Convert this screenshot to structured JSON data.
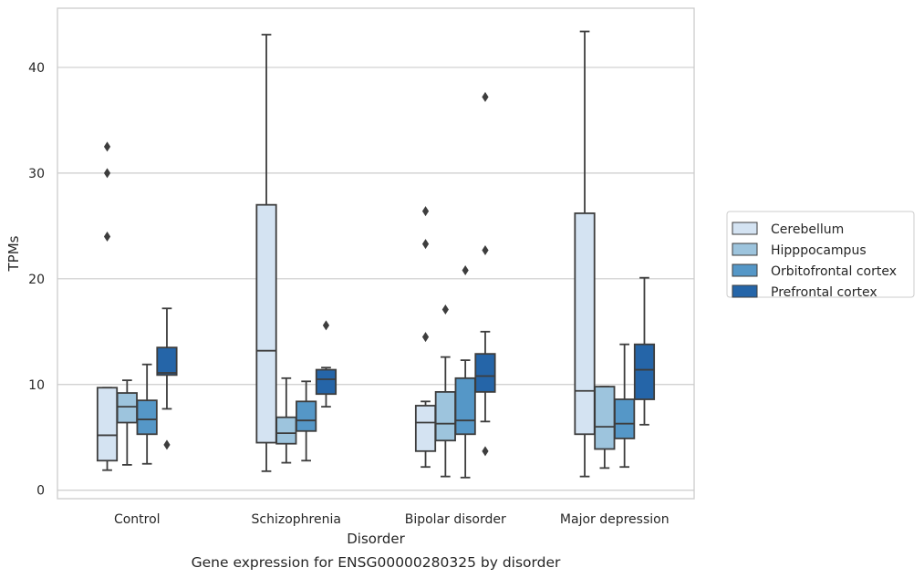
{
  "chart_data": {
    "type": "box",
    "title": "",
    "caption": "Gene expression for ENSG00000280325 by disorder",
    "xlabel": "Disorder",
    "ylabel": "TPMs",
    "ylim": [
      -0.8,
      45.6
    ],
    "yticks": [
      0,
      10,
      20,
      30,
      40
    ],
    "grid": "horizontal",
    "legend_position": "right",
    "categories": [
      "Control",
      "Schizophrenia",
      "Bipolar disorder",
      "Major depression"
    ],
    "series": [
      {
        "name": "Cerebellum",
        "color": "#d4e3f2",
        "boxes": [
          {
            "whisker_low": 1.9,
            "q1": 2.8,
            "median": 5.2,
            "q3": 9.7,
            "whisker_high": 9.7,
            "outliers": [
              24.0,
              30.0,
              32.5
            ]
          },
          {
            "whisker_low": 1.8,
            "q1": 4.5,
            "median": 13.2,
            "q3": 27.0,
            "whisker_high": 43.1,
            "outliers": []
          },
          {
            "whisker_low": 2.2,
            "q1": 3.7,
            "median": 6.4,
            "q3": 8.0,
            "whisker_high": 8.4,
            "outliers": [
              14.5,
              23.3,
              26.4
            ]
          },
          {
            "whisker_low": 1.3,
            "q1": 5.3,
            "median": 9.4,
            "q3": 26.2,
            "whisker_high": 43.4,
            "outliers": []
          }
        ]
      },
      {
        "name": "Hipppocampus",
        "color": "#9dc4dd",
        "boxes": [
          {
            "whisker_low": 2.4,
            "q1": 6.4,
            "median": 7.9,
            "q3": 9.2,
            "whisker_high": 10.4,
            "outliers": []
          },
          {
            "whisker_low": 2.6,
            "q1": 4.4,
            "median": 5.4,
            "q3": 6.9,
            "whisker_high": 10.6,
            "outliers": []
          },
          {
            "whisker_low": 1.3,
            "q1": 4.7,
            "median": 6.3,
            "q3": 9.3,
            "whisker_high": 12.6,
            "outliers": [
              17.1
            ]
          },
          {
            "whisker_low": 2.1,
            "q1": 3.9,
            "median": 6.0,
            "q3": 9.8,
            "whisker_high": 9.8,
            "outliers": []
          }
        ]
      },
      {
        "name": "Orbitofrontal cortex",
        "color": "#5597c7",
        "boxes": [
          {
            "whisker_low": 2.5,
            "q1": 5.3,
            "median": 6.7,
            "q3": 8.5,
            "whisker_high": 11.9,
            "outliers": []
          },
          {
            "whisker_low": 2.8,
            "q1": 5.6,
            "median": 6.6,
            "q3": 8.4,
            "whisker_high": 10.3,
            "outliers": []
          },
          {
            "whisker_low": 1.2,
            "q1": 5.3,
            "median": 6.6,
            "q3": 10.6,
            "whisker_high": 12.3,
            "outliers": [
              20.8
            ]
          },
          {
            "whisker_low": 2.2,
            "q1": 4.9,
            "median": 6.3,
            "q3": 8.6,
            "whisker_high": 13.8,
            "outliers": []
          }
        ]
      },
      {
        "name": "Prefrontal cortex",
        "color": "#2565a8",
        "boxes": [
          {
            "whisker_low": 7.7,
            "q1": 10.9,
            "median": 11.1,
            "q3": 13.5,
            "whisker_high": 17.2,
            "outliers": [
              4.3
            ]
          },
          {
            "whisker_low": 7.9,
            "q1": 9.1,
            "median": 10.5,
            "q3": 11.4,
            "whisker_high": 11.6,
            "outliers": [
              15.6
            ]
          },
          {
            "whisker_low": 6.5,
            "q1": 9.3,
            "median": 10.8,
            "q3": 12.9,
            "whisker_high": 15.0,
            "outliers": [
              3.7,
              22.7,
              37.2
            ]
          },
          {
            "whisker_low": 6.2,
            "q1": 8.6,
            "median": 11.4,
            "q3": 13.8,
            "whisker_high": 20.1,
            "outliers": []
          }
        ]
      }
    ]
  }
}
